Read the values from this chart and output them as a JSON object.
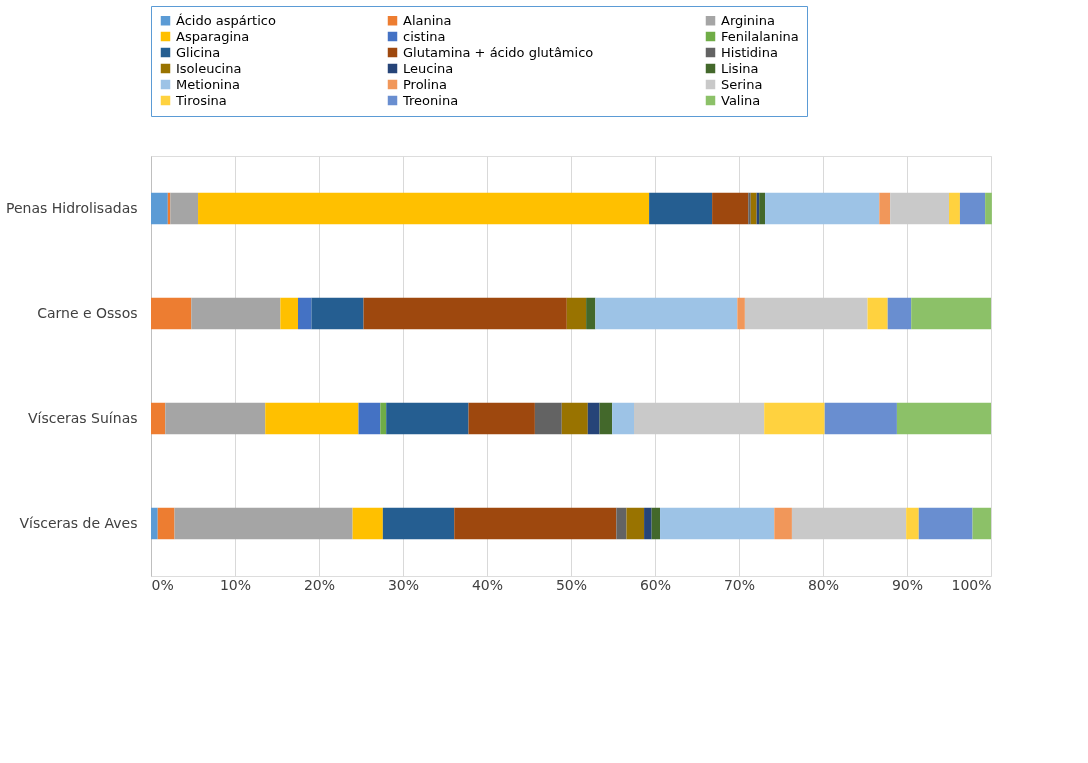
{
  "chart_data": {
    "type": "bar",
    "orientation": "horizontal",
    "stacked": true,
    "legend": "top",
    "grid": "x",
    "categories": [
      "Penas Hidrolisadas",
      "Carne e Ossos",
      "Vísceras Suínas",
      "Vísceras de Aves"
    ],
    "xlim": [
      0,
      100
    ],
    "xticks": [
      {
        "value": 0,
        "label": "0%"
      },
      {
        "value": 10,
        "label": "10%"
      },
      {
        "value": 20,
        "label": "20%"
      },
      {
        "value": 30,
        "label": "30%"
      },
      {
        "value": 40,
        "label": "40%"
      },
      {
        "value": 50,
        "label": "50%"
      },
      {
        "value": 60,
        "label": "60%"
      },
      {
        "value": 70,
        "label": "70%"
      },
      {
        "value": 80,
        "label": "80%"
      },
      {
        "value": 90,
        "label": "90%"
      },
      {
        "value": 100,
        "label": "100%"
      }
    ],
    "series": [
      {
        "name": "Ácido aspártico",
        "color": "#5b9bd5",
        "values": [
          2.0,
          0,
          0,
          0.8
        ]
      },
      {
        "name": "Alanina",
        "color": "#ed7d31",
        "values": [
          0.3,
          4.8,
          1.7,
          2.0
        ]
      },
      {
        "name": "Arginina",
        "color": "#a5a5a5",
        "values": [
          3.3,
          10.6,
          11.9,
          21.2
        ]
      },
      {
        "name": "Asparagina",
        "color": "#ffc000",
        "values": [
          53.7,
          2.1,
          11.1,
          3.6
        ]
      },
      {
        "name": "cistina",
        "color": "#4472c4",
        "values": [
          0,
          1.6,
          2.6,
          0
        ]
      },
      {
        "name": "Fenilalanina",
        "color": "#70ad47",
        "values": [
          0,
          0,
          0.7,
          0
        ]
      },
      {
        "name": "Glicina",
        "color": "#255e91",
        "values": [
          7.5,
          6.2,
          9.8,
          8.5
        ]
      },
      {
        "name": "Glutamina + ácido glutâmico",
        "color": "#9e480e",
        "values": [
          4.3,
          24.2,
          7.9,
          19.3
        ]
      },
      {
        "name": "Histidina",
        "color": "#636363",
        "values": [
          0.3,
          0,
          3.2,
          1.2
        ]
      },
      {
        "name": "Isoleucina",
        "color": "#997300",
        "values": [
          0.7,
          2.3,
          3.1,
          2.1
        ]
      },
      {
        "name": "Leucina",
        "color": "#264478",
        "values": [
          0.3,
          0,
          1.4,
          0.9
        ]
      },
      {
        "name": "Lisina",
        "color": "#43682b",
        "values": [
          0.7,
          1.1,
          1.5,
          1.0
        ]
      },
      {
        "name": "Metionina",
        "color": "#9dc3e6",
        "values": [
          13.6,
          16.9,
          2.6,
          13.6
        ]
      },
      {
        "name": "Prolina",
        "color": "#f1975a",
        "values": [
          1.3,
          0.9,
          0,
          2.1
        ]
      },
      {
        "name": "Serina",
        "color": "#c9c9c9",
        "values": [
          7.0,
          14.6,
          15.5,
          13.6
        ]
      },
      {
        "name": "Tirosina",
        "color": "#ffd23f",
        "values": [
          1.3,
          2.4,
          7.2,
          1.5
        ]
      },
      {
        "name": "Treonina",
        "color": "#698ed0",
        "values": [
          3.0,
          2.8,
          8.6,
          6.4
        ]
      },
      {
        "name": "Valina",
        "color": "#8cc168",
        "values": [
          0.8,
          9.5,
          11.2,
          2.2
        ]
      }
    ]
  }
}
